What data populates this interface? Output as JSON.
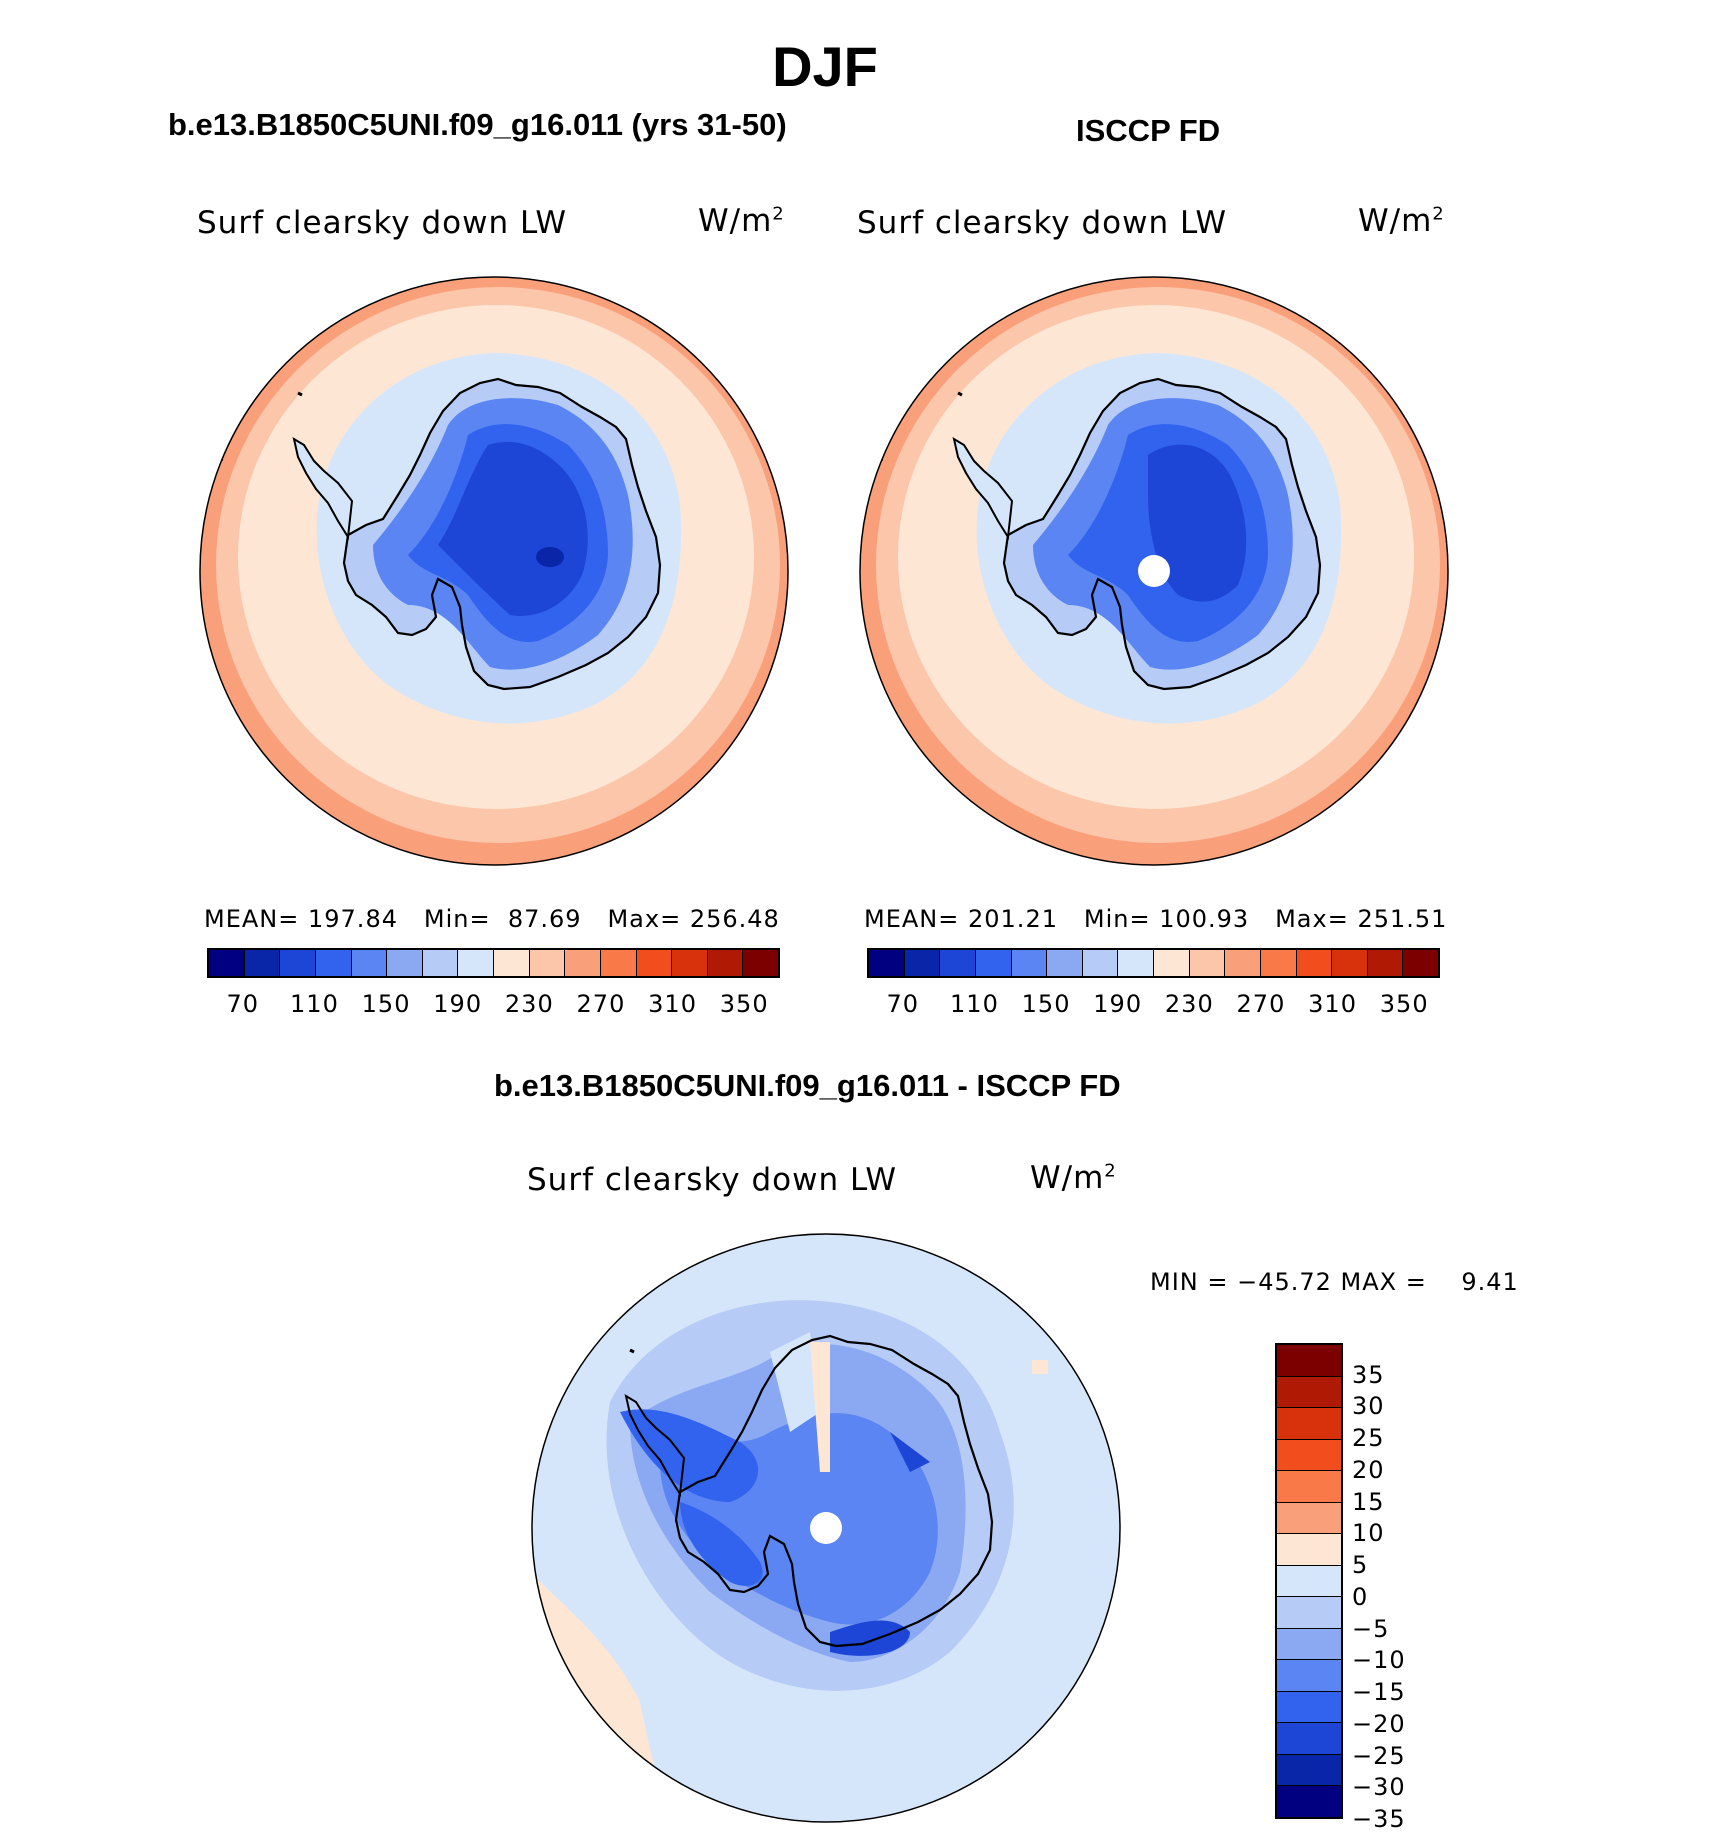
{
  "figure_title": "DJF",
  "panels": [
    {
      "title": "b.e13.B1850C5UNI.f09_g16.011 (yrs 31-50)",
      "variable": "Surf clearsky down LW",
      "units": "W/m",
      "units_superscript": "2",
      "stats": {
        "mean_label": "MEAN=",
        "mean": "197.84",
        "min_label": "Min=",
        "min": "87.69",
        "max_label": "Max=",
        "max": "256.48"
      }
    },
    {
      "title": "ISCCP FD",
      "variable": "Surf clearsky down LW",
      "units": "W/m",
      "units_superscript": "2",
      "stats": {
        "mean_label": "MEAN=",
        "mean": "201.21",
        "min_label": "Min=",
        "min": "100.93",
        "max_label": "Max=",
        "max": "251.51"
      }
    },
    {
      "title": "b.e13.B1850C5UNI.f09_g16.011 - ISCCP FD",
      "variable": "Surf clearsky down LW",
      "units": "W/m",
      "units_superscript": "2",
      "stats": {
        "text": "MIN = −45.72 MAX =    9.41"
      }
    }
  ],
  "colorbar_horizontal": {
    "colors": [
      "#000080",
      "#0a26a8",
      "#1d45d6",
      "#3263ef",
      "#5a85f2",
      "#8aa9f2",
      "#b6cbf5",
      "#d6e6fa",
      "#fde6d4",
      "#fcc6aa",
      "#f9a07b",
      "#f97a48",
      "#f24d1c",
      "#d8320c",
      "#b01a05",
      "#7d0000"
    ],
    "tick_labels": [
      "70",
      "110",
      "150",
      "190",
      "230",
      "270",
      "310",
      "350"
    ]
  },
  "colorbar_vertical": {
    "colors": [
      "#7d0000",
      "#b01a05",
      "#d8320c",
      "#f24d1c",
      "#f97a48",
      "#f9a07b",
      "#fde6d4",
      "#d6e6fa",
      "#b6cbf5",
      "#8aa9f2",
      "#5a85f2",
      "#3263ef",
      "#1d45d6",
      "#0a26a8",
      "#000080"
    ],
    "tick_labels": [
      "35",
      "30",
      "25",
      "20",
      "15",
      "10",
      "5",
      "0",
      "−5",
      "−10",
      "−15",
      "−20",
      "−25",
      "−30",
      "−35"
    ]
  },
  "map_colors": {
    "outer_warm": "#f9a07b",
    "mid_warm": "#fcc6aa",
    "light_warm": "#fde6d4",
    "light_cool": "#d6e6fa",
    "pale_blue": "#b6cbf5",
    "med_blue": "#8aa9f2",
    "blue": "#5a85f2",
    "deep_blue": "#3263ef",
    "dark_blue": "#1d45d6",
    "navy": "#0a26a8",
    "coast": "#000000",
    "pole_hole": "#ffffff"
  }
}
